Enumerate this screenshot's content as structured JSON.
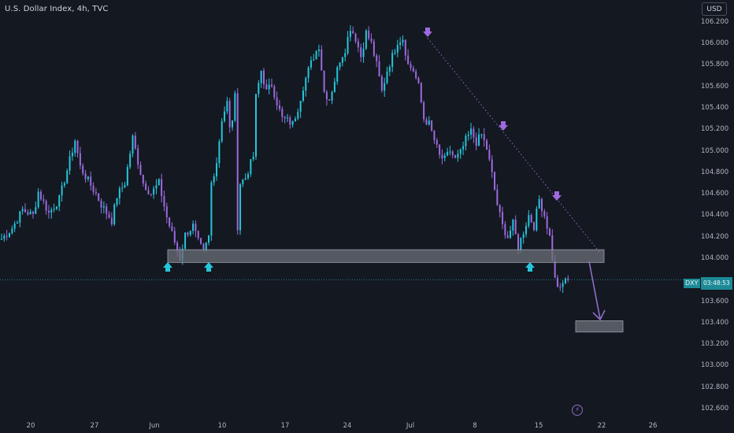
{
  "header": {
    "title": "U.S. Dollar Index, 4h, TVC"
  },
  "toolbar": {
    "currency_label": "USD"
  },
  "price_tag": {
    "symbol": "DXY",
    "price": "103.8",
    "countdown": "03:48:53"
  },
  "colors": {
    "background": "#141821",
    "up": "#26c6da",
    "down": "#9c6ade",
    "annotation": "#8e6cc7",
    "zone": "#6b6f78"
  },
  "chart_data": {
    "type": "candlestick",
    "title": "U.S. Dollar Index, 4h, TVC",
    "y_axis": {
      "ticks": [
        "106.200",
        "106.000",
        "105.800",
        "105.600",
        "105.400",
        "105.200",
        "105.000",
        "104.800",
        "104.600",
        "104.400",
        "104.200",
        "104.000",
        "103.600",
        "103.400",
        "103.200",
        "103.000",
        "102.800",
        "102.600"
      ],
      "range": [
        102.55,
        106.38
      ]
    },
    "x_axis": {
      "ticks": [
        "20",
        "27",
        "Jun",
        "10",
        "17",
        "24",
        "Jul",
        "8",
        "15",
        "22",
        "26"
      ]
    },
    "series_path": [
      [
        0,
        104.18
      ],
      [
        4,
        104.28
      ],
      [
        8,
        104.45
      ],
      [
        12,
        104.4
      ],
      [
        14,
        104.62
      ],
      [
        18,
        104.42
      ],
      [
        22,
        104.55
      ],
      [
        25,
        104.82
      ],
      [
        28,
        105.1
      ],
      [
        30,
        104.85
      ],
      [
        33,
        104.72
      ],
      [
        36,
        104.6
      ],
      [
        38,
        104.5
      ],
      [
        42,
        104.35
      ],
      [
        44,
        104.58
      ],
      [
        47,
        104.7
      ],
      [
        50,
        105.12
      ],
      [
        52,
        104.9
      ],
      [
        54,
        104.7
      ],
      [
        57,
        104.6
      ],
      [
        60,
        104.7
      ],
      [
        63,
        104.38
      ],
      [
        66,
        104.15
      ],
      [
        68,
        104.0
      ],
      [
        70,
        104.22
      ],
      [
        73,
        104.3
      ],
      [
        75,
        104.15
      ],
      [
        77,
        104.05
      ],
      [
        79,
        104.2
      ],
      [
        80,
        104.7
      ],
      [
        82,
        104.9
      ],
      [
        84,
        105.3
      ],
      [
        86,
        105.45
      ],
      [
        87,
        105.2
      ],
      [
        88,
        105.3
      ],
      [
        89,
        105.5
      ],
      [
        90,
        104.3
      ],
      [
        91,
        104.7
      ],
      [
        93,
        104.75
      ],
      [
        96,
        104.95
      ],
      [
        97,
        105.5
      ],
      [
        99,
        105.75
      ],
      [
        101,
        105.55
      ],
      [
        103,
        105.62
      ],
      [
        105,
        105.45
      ],
      [
        107,
        105.3
      ],
      [
        109,
        105.28
      ],
      [
        111,
        105.25
      ],
      [
        113,
        105.4
      ],
      [
        115,
        105.6
      ],
      [
        117,
        105.75
      ],
      [
        119,
        105.88
      ],
      [
        121,
        105.98
      ],
      [
        123,
        105.55
      ],
      [
        125,
        105.48
      ],
      [
        127,
        105.66
      ],
      [
        129,
        105.85
      ],
      [
        131,
        105.95
      ],
      [
        133,
        106.15
      ],
      [
        135,
        106.05
      ],
      [
        137,
        105.88
      ],
      [
        139,
        106.1
      ],
      [
        141,
        106.0
      ],
      [
        143,
        105.8
      ],
      [
        145,
        105.55
      ],
      [
        147,
        105.75
      ],
      [
        149,
        105.88
      ],
      [
        151,
        106.02
      ],
      [
        153,
        106.05
      ],
      [
        155,
        105.8
      ],
      [
        157,
        105.75
      ],
      [
        159,
        105.6
      ],
      [
        161,
        105.3
      ],
      [
        163,
        105.25
      ],
      [
        165,
        105.1
      ],
      [
        167,
        104.95
      ],
      [
        169,
        104.92
      ],
      [
        171,
        105.0
      ],
      [
        173,
        104.92
      ],
      [
        175,
        104.98
      ],
      [
        177,
        105.1
      ],
      [
        179,
        105.18
      ],
      [
        181,
        105.08
      ],
      [
        183,
        105.15
      ],
      [
        185,
        105.02
      ],
      [
        187,
        104.78
      ],
      [
        189,
        104.5
      ],
      [
        191,
        104.3
      ],
      [
        193,
        104.2
      ],
      [
        195,
        104.32
      ],
      [
        197,
        104.1
      ],
      [
        199,
        104.25
      ],
      [
        201,
        104.4
      ],
      [
        203,
        104.3
      ],
      [
        205,
        104.55
      ],
      [
        207,
        104.4
      ],
      [
        209,
        104.2
      ],
      [
        211,
        103.8
      ],
      [
        213,
        103.7
      ],
      [
        215,
        103.82
      ],
      [
        216,
        103.8
      ]
    ],
    "annotations": {
      "support_zone": {
        "from_price": 103.99,
        "to_price": 104.05,
        "label": ""
      },
      "target_zone": {
        "from_price": 103.32,
        "to_price": 103.41,
        "label": ""
      },
      "trendline": {
        "from_price": 106.05,
        "to_price": 104.05
      },
      "current_price_line": 103.8,
      "up_arrows": 3,
      "down_arrows": 3
    }
  }
}
